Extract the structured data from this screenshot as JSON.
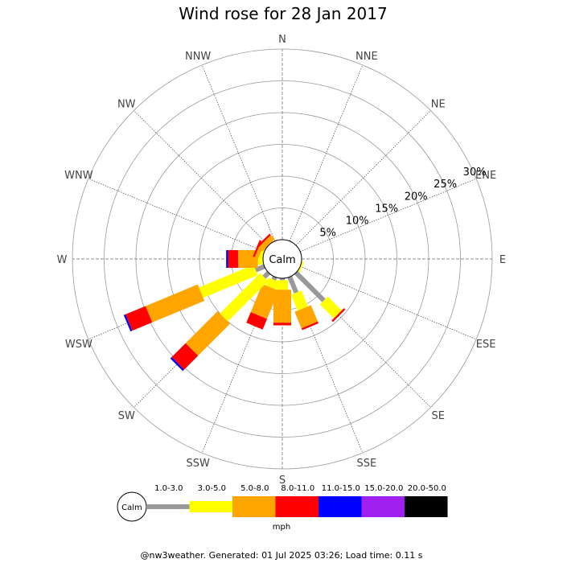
{
  "chart_data": {
    "type": "wind-rose",
    "title": "Wind rose for 28 Jan 2017",
    "directions": [
      "N",
      "NNE",
      "NE",
      "ENE",
      "E",
      "ESE",
      "SE",
      "SSE",
      "S",
      "SSW",
      "SW",
      "WSW",
      "W",
      "WNW",
      "NW",
      "NNW"
    ],
    "radial_ticks": [
      "5%",
      "10%",
      "15%",
      "20%",
      "25%",
      "30%"
    ],
    "radial_values": [
      5,
      10,
      15,
      20,
      25,
      30
    ],
    "rmax": 30,
    "calm_label": "Calm",
    "speed_bins": [
      {
        "label": "1.0-3.0",
        "color": "#999999"
      },
      {
        "label": "3.0-5.0",
        "color": "#ffff00"
      },
      {
        "label": "5.0-8.0",
        "color": "#ffa500"
      },
      {
        "label": "8.0-11.0",
        "color": "#ff0000"
      },
      {
        "label": "11.0-15.0",
        "color": "#0000ff"
      },
      {
        "label": "15.0-20.0",
        "color": "#a020f0"
      },
      {
        "label": "20.0-50.0",
        "color": "#000000"
      }
    ],
    "unit_label": "mph",
    "series": [
      {
        "direction": "N",
        "values": [
          0,
          0,
          0,
          0,
          0,
          0,
          0
        ]
      },
      {
        "direction": "NNE",
        "values": [
          0,
          0,
          0,
          0,
          0,
          0,
          0
        ]
      },
      {
        "direction": "NE",
        "values": [
          0,
          0,
          0,
          0,
          0,
          0,
          0
        ]
      },
      {
        "direction": "ENE",
        "values": [
          0,
          0,
          0,
          0,
          0,
          0,
          0
        ]
      },
      {
        "direction": "E",
        "values": [
          0,
          0,
          0,
          0,
          0,
          0,
          0
        ]
      },
      {
        "direction": "ESE",
        "values": [
          0,
          0.3,
          0,
          0,
          0,
          0,
          0
        ]
      },
      {
        "direction": "SE",
        "values": [
          6.2,
          3.1,
          0,
          0.3,
          0,
          0,
          0
        ]
      },
      {
        "direction": "SSE",
        "values": [
          2.7,
          2.7,
          2.8,
          0.3,
          0,
          0,
          0
        ]
      },
      {
        "direction": "S",
        "values": [
          0.3,
          1.5,
          5.2,
          0.4,
          0,
          0,
          0
        ]
      },
      {
        "direction": "SSW",
        "values": [
          0.5,
          1.3,
          4.8,
          1.8,
          0,
          0,
          0
        ]
      },
      {
        "direction": "SW",
        "values": [
          1.0,
          9.0,
          7.1,
          3.1,
          0.3,
          0,
          0
        ]
      },
      {
        "direction": "WSW",
        "values": [
          1.5,
          9.3,
          8.9,
          3.4,
          0.3,
          0,
          0
        ]
      },
      {
        "direction": "W",
        "values": [
          0,
          0.8,
          3.1,
          1.6,
          0.3,
          0,
          0
        ]
      },
      {
        "direction": "WNW",
        "values": [
          0,
          0.5,
          0.6,
          0.3,
          0,
          0,
          0
        ]
      },
      {
        "direction": "NW",
        "values": [
          0,
          0,
          0.9,
          0.3,
          0,
          0,
          0
        ]
      },
      {
        "direction": "NNW",
        "values": [
          0,
          0,
          0,
          0,
          0,
          0,
          0
        ]
      }
    ]
  },
  "footer": "@nw3weather. Generated: 01 Jul 2025 03:26; Load time: 0.11 s"
}
